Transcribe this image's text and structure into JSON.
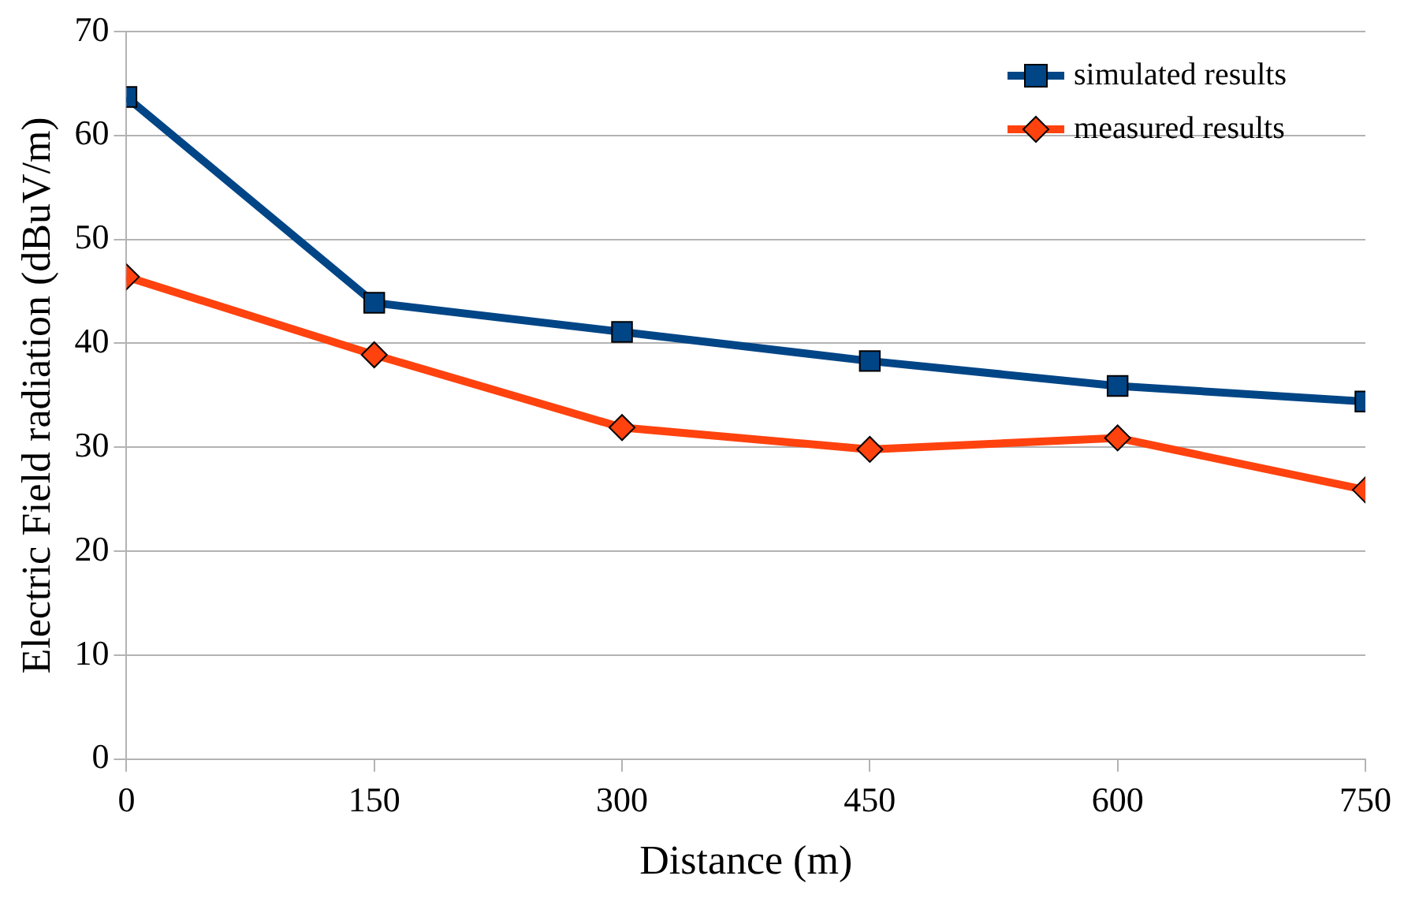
{
  "chart_data": {
    "type": "line",
    "xlabel": "Distance (m)",
    "ylabel": "Electric Field radiation (dBuV/m)",
    "x": [
      0,
      150,
      300,
      450,
      600,
      750
    ],
    "series": [
      {
        "name": "simulated results",
        "color": "#004586",
        "marker": "square",
        "values": [
          63.7,
          43.9,
          41.1,
          38.3,
          35.9,
          34.4
        ]
      },
      {
        "name": "measured results",
        "color": "#ff420e",
        "marker": "diamond",
        "values": [
          46.4,
          38.9,
          31.9,
          29.8,
          30.9,
          25.9
        ]
      }
    ],
    "xlim": [
      0,
      750
    ],
    "xticks": [
      0,
      150,
      300,
      450,
      600,
      750
    ],
    "ylim": [
      0,
      70
    ],
    "yticks": [
      0,
      10,
      20,
      30,
      40,
      50,
      60,
      70
    ],
    "grid": "y",
    "legend": "top right",
    "line_style": "solid"
  }
}
